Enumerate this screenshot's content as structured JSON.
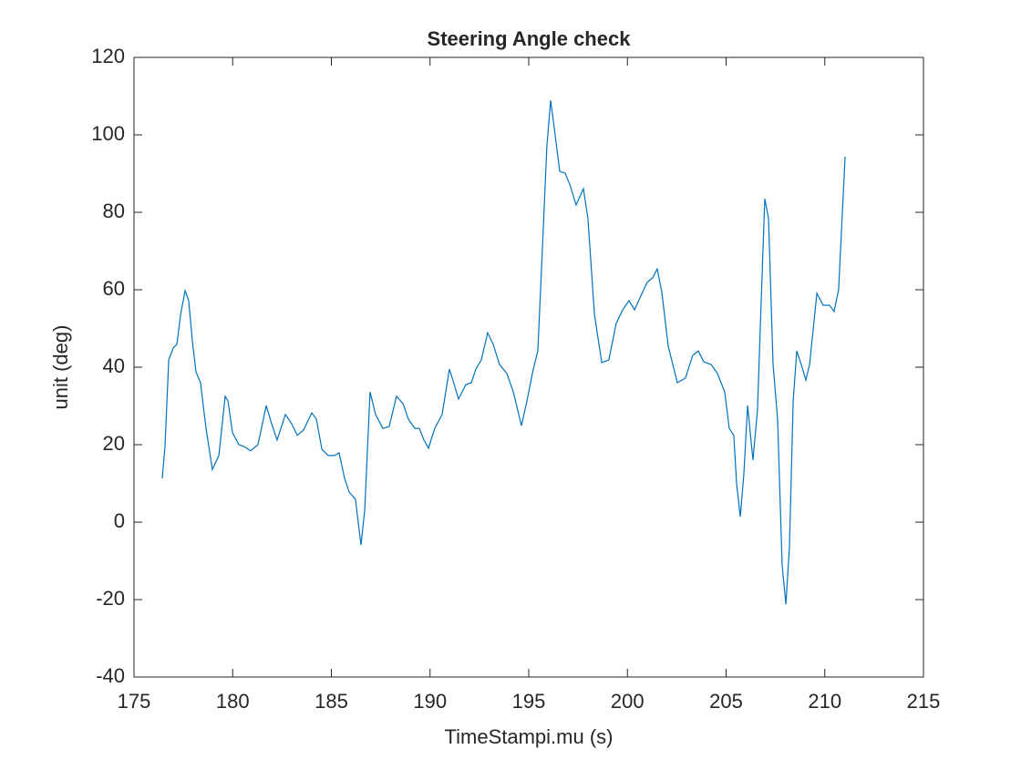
{
  "chart_data": {
    "type": "line",
    "title": "Steering Angle check",
    "x_label": "TimeStampi.mu (s)",
    "y_label": "unit (deg)",
    "x": [
      176.43,
      176.57,
      176.76,
      176.99,
      177.17,
      177.36,
      177.59,
      177.77,
      177.96,
      178.14,
      178.37,
      178.65,
      178.97,
      179.3,
      179.62,
      179.76,
      179.99,
      180.31,
      180.59,
      180.91,
      181.28,
      181.7,
      181.93,
      182.25,
      182.67,
      182.99,
      183.27,
      183.59,
      184.01,
      184.24,
      184.52,
      184.84,
      185.16,
      185.39,
      185.67,
      185.9,
      186.22,
      186.5,
      186.69,
      186.96,
      187.24,
      187.61,
      187.93,
      188.3,
      188.63,
      188.9,
      189.23,
      189.46,
      189.69,
      189.92,
      190.24,
      190.61,
      190.98,
      191.17,
      191.44,
      191.81,
      192.09,
      192.32,
      192.6,
      192.92,
      193.2,
      193.52,
      193.89,
      194.22,
      194.63,
      194.91,
      195.23,
      195.46,
      195.74,
      195.92,
      196.11,
      196.29,
      196.57,
      196.85,
      197.12,
      197.4,
      197.77,
      198.0,
      198.33,
      198.7,
      199.06,
      199.43,
      199.76,
      200.08,
      200.36,
      200.68,
      201.0,
      201.28,
      201.51,
      201.74,
      202.07,
      202.53,
      202.94,
      203.31,
      203.59,
      203.87,
      204.24,
      204.56,
      204.93,
      205.16,
      205.39,
      205.53,
      205.72,
      205.9,
      206.09,
      206.36,
      206.59,
      206.78,
      206.96,
      207.15,
      207.38,
      207.61,
      207.84,
      208.03,
      208.21,
      208.4,
      208.58,
      208.81,
      209.04,
      209.23,
      209.6,
      209.92,
      210.24,
      210.47,
      210.7,
      211.03
    ],
    "series": [
      {
        "color": "#0072bd",
        "values": [
          11.3,
          19.5,
          41.9,
          45,
          45.9,
          53.6,
          59.8,
          57.2,
          46.6,
          38.8,
          36,
          24.2,
          13.6,
          17.2,
          32.5,
          31.3,
          23.1,
          20,
          19.5,
          18.4,
          20,
          30.1,
          26.1,
          21.2,
          27.8,
          25.4,
          22.4,
          23.8,
          28.2,
          26.6,
          18.8,
          17.2,
          17.2,
          17.9,
          11.3,
          7.8,
          5.9,
          -5.9,
          3.1,
          33.6,
          27.8,
          24.2,
          24.7,
          32.5,
          30.6,
          26.6,
          24.2,
          24.2,
          21.2,
          19.1,
          24.2,
          27.8,
          39.5,
          36.5,
          31.8,
          35.5,
          36,
          39.5,
          41.9,
          48.9,
          45.9,
          40.7,
          38.4,
          33.6,
          24.9,
          31.3,
          39.5,
          44.2,
          76,
          97.2,
          108.9,
          101.9,
          90.6,
          90.1,
          86.6,
          81.9,
          86.1,
          78.4,
          53.6,
          41.2,
          41.9,
          51.3,
          54.8,
          57.2,
          54.8,
          58.4,
          61.9,
          63.1,
          65.4,
          59.5,
          45.4,
          36,
          37.2,
          43.1,
          44.2,
          41.4,
          40.7,
          38.4,
          33.6,
          24.2,
          22.4,
          10.1,
          1.4,
          12.5,
          30.1,
          16,
          28.9,
          57.2,
          83.5,
          78.4,
          40.7,
          26.6,
          -11.1,
          -21.2,
          -6.4,
          31.3,
          44.2,
          40.7,
          36.7,
          40.7,
          59.1,
          56,
          56,
          54.4,
          60,
          94.4
        ]
      }
    ],
    "xlim": [
      175,
      215
    ],
    "xticks": [
      175,
      180,
      185,
      190,
      195,
      200,
      205,
      210,
      215
    ],
    "ylim": [
      -40,
      120
    ],
    "yticks": [
      -40,
      -20,
      0,
      20,
      40,
      60,
      80,
      100,
      120
    ]
  }
}
